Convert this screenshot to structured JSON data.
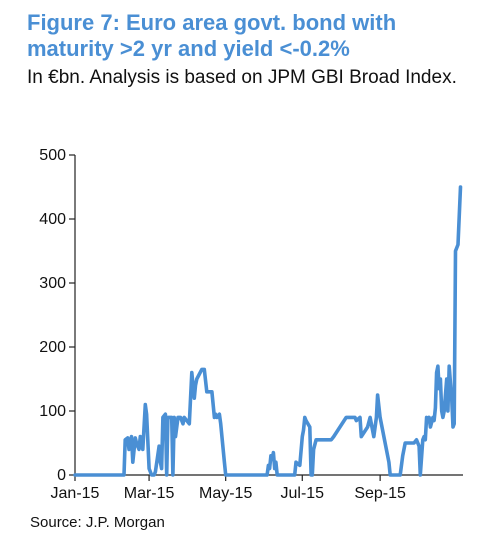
{
  "title": "Figure 7: Euro area govt. bond with maturity >2 yr and yield <-0.2%",
  "subtitle": "In €bn. Analysis is based on JPM GBI Broad Index.",
  "source": "Source:  J.P. Morgan",
  "chart_data": {
    "type": "line",
    "title": "Figure 7: Euro area govt. bond with maturity >2 yr and yield <-0.2%",
    "ylabel": "",
    "xlabel": "",
    "ylim": [
      0,
      500
    ],
    "xlim": [
      "2015-01-01",
      "2015-11-06"
    ],
    "yticks": [
      0,
      100,
      200,
      300,
      400,
      500
    ],
    "xticks": [
      "Jan-15",
      "Mar-15",
      "May-15",
      "Jul-15",
      "Sep-15"
    ],
    "xtick_dates": [
      "2015-01-01",
      "2015-03-01",
      "2015-05-01",
      "2015-07-01",
      "2015-09-01"
    ],
    "grid": false,
    "legend": "none",
    "color": "#4a8fd4",
    "series": [
      {
        "x": [
          "2015-01-01",
          "2015-02-09",
          "2015-02-10",
          "2015-02-12",
          "2015-02-13",
          "2015-02-15",
          "2015-02-16",
          "2015-02-18",
          "2015-02-19",
          "2015-02-21",
          "2015-02-22",
          "2015-02-23",
          "2015-02-24",
          "2015-02-26",
          "2015-02-27",
          "2015-03-01",
          "2015-03-03",
          "2015-03-05",
          "2015-03-06",
          "2015-03-09",
          "2015-03-10",
          "2015-03-11",
          "2015-03-12",
          "2015-03-14",
          "2015-03-15",
          "2015-03-16",
          "2015-03-19",
          "2015-03-20",
          "2015-03-21",
          "2015-03-22",
          "2015-03-24",
          "2015-03-26",
          "2015-03-28",
          "2015-03-29",
          "2015-03-31",
          "2015-04-02",
          "2015-04-04",
          "2015-04-06",
          "2015-04-07",
          "2015-04-08",
          "2015-04-12",
          "2015-04-14",
          "2015-04-16",
          "2015-04-20",
          "2015-04-22",
          "2015-04-23",
          "2015-04-24",
          "2015-04-26",
          "2015-04-27",
          "2015-04-30",
          "2015-05-01",
          "2015-06-02",
          "2015-06-03",
          "2015-06-04",
          "2015-06-05",
          "2015-06-06",
          "2015-06-07",
          "2015-06-08",
          "2015-06-09",
          "2015-06-10",
          "2015-06-11",
          "2015-06-25",
          "2015-06-26",
          "2015-06-29",
          "2015-07-01",
          "2015-07-02",
          "2015-07-03",
          "2015-07-04",
          "2015-07-07",
          "2015-07-08",
          "2015-07-09",
          "2015-07-10",
          "2015-07-12",
          "2015-07-22",
          "2015-07-24",
          "2015-07-26",
          "2015-08-05",
          "2015-08-12",
          "2015-08-13",
          "2015-08-16",
          "2015-08-17",
          "2015-08-22",
          "2015-08-24",
          "2015-08-27",
          "2015-08-29",
          "2015-08-30",
          "2015-09-01",
          "2015-09-08",
          "2015-09-09",
          "2015-09-10",
          "2015-09-11",
          "2015-09-17",
          "2015-09-19",
          "2015-09-21",
          "2015-09-22",
          "2015-09-24",
          "2015-09-26",
          "2015-09-28",
          "2015-09-30",
          "2015-10-01",
          "2015-10-02",
          "2015-10-03",
          "2015-10-05",
          "2015-10-06",
          "2015-10-07",
          "2015-10-08",
          "2015-10-09",
          "2015-10-10",
          "2015-10-11",
          "2015-10-13",
          "2015-10-14",
          "2015-10-15",
          "2015-10-16",
          "2015-10-17",
          "2015-10-18",
          "2015-10-19",
          "2015-10-20",
          "2015-10-21",
          "2015-10-22",
          "2015-10-24",
          "2015-10-25",
          "2015-10-26",
          "2015-10-27",
          "2015-10-28",
          "2015-10-29",
          "2015-10-30",
          "2015-10-31",
          "2015-11-02",
          "2015-11-04"
        ],
        "y": [
          0,
          0,
          55,
          58,
          40,
          60,
          20,
          58,
          50,
          40,
          60,
          50,
          40,
          110,
          95,
          10,
          0,
          0,
          5,
          45,
          20,
          10,
          90,
          95,
          0,
          90,
          90,
          0,
          90,
          60,
          90,
          90,
          80,
          90,
          85,
          80,
          160,
          120,
          140,
          150,
          165,
          165,
          130,
          130,
          90,
          95,
          90,
          95,
          80,
          20,
          0,
          0,
          0,
          15,
          10,
          30,
          25,
          35,
          10,
          20,
          0,
          0,
          20,
          15,
          60,
          70,
          90,
          85,
          75,
          0,
          0,
          40,
          55,
          55,
          55,
          60,
          90,
          90,
          85,
          90,
          60,
          75,
          90,
          60,
          90,
          125,
          90,
          20,
          0,
          0,
          0,
          0,
          30,
          50,
          50,
          50,
          50,
          50,
          55,
          50,
          45,
          0,
          55,
          60,
          55,
          90,
          85,
          90,
          75,
          90,
          85,
          105,
          160,
          170,
          135,
          150,
          100,
          90,
          100,
          150,
          100,
          170,
          145,
          120,
          75,
          80,
          350,
          360,
          450
        ]
      }
    ]
  }
}
